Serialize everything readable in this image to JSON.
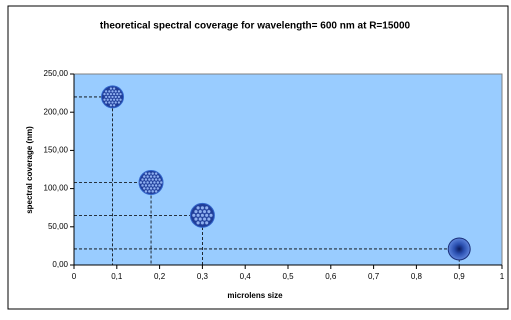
{
  "chart_data": {
    "type": "scatter",
    "title": "theoretical spectral coverage for wavelength= 600 nm at R=15000",
    "x_label": "microlens size",
    "y_label": "spectral coverage (nm)",
    "x": [
      0.09,
      0.18,
      0.3,
      0.9
    ],
    "values": [
      220,
      108,
      65,
      21
    ],
    "color": "#3366cc",
    "plot_background": "#99ccff",
    "xlim": [
      0,
      1
    ],
    "xticks": [
      0,
      {
        "value": 0.1,
        "label": "0,1"
      },
      {
        "value": 0.2,
        "label": "0,2"
      },
      {
        "value": 0.3,
        "label": "0,3"
      },
      {
        "value": 0.4,
        "label": "0,4"
      },
      {
        "value": 0.5,
        "label": "0,5"
      },
      {
        "value": 0.6,
        "label": "0,6"
      },
      {
        "value": 0.7,
        "label": "0,7"
      },
      {
        "value": 0.8,
        "label": "0,8"
      },
      {
        "value": 0.9,
        "label": "0,9"
      },
      1
    ],
    "ylim": [
      0,
      250
    ],
    "yticks": [
      {
        "value": 0,
        "label": "0,00"
      },
      {
        "value": 50,
        "label": "50,00"
      },
      {
        "value": 100,
        "label": "100,00"
      },
      {
        "value": 150,
        "label": "150,00"
      },
      {
        "value": 200,
        "label": "200,00"
      },
      {
        "value": 250,
        "label": "250,00"
      }
    ]
  }
}
